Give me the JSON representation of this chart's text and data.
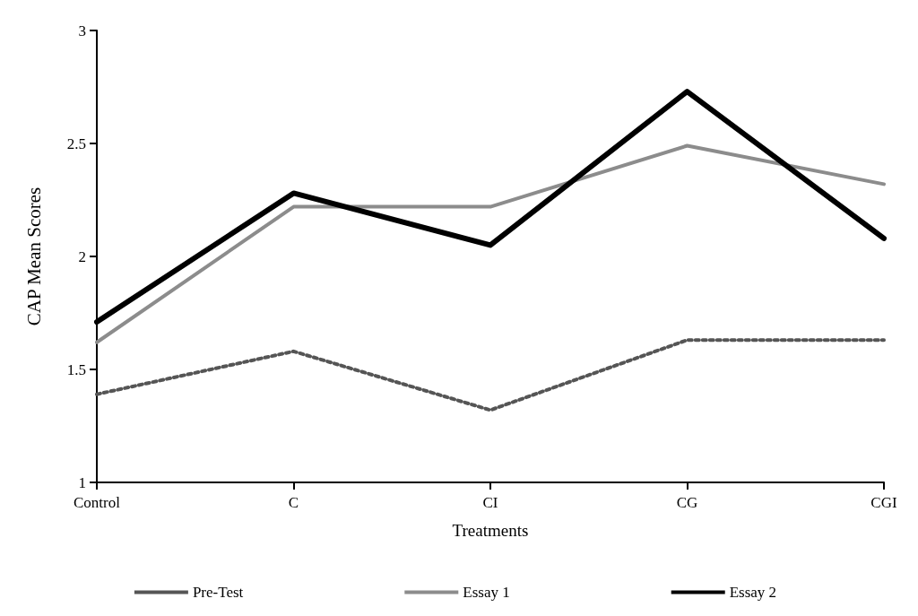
{
  "chart_data": {
    "type": "line",
    "xlabel": "Treatments",
    "ylabel": "CAP Mean Scores",
    "categories": [
      "Control",
      "C",
      "CI",
      "CG",
      "CGI"
    ],
    "series": [
      {
        "name": "Pre-Test",
        "color": "#555555",
        "line_style": "dotted",
        "values": [
          1.39,
          1.58,
          1.32,
          1.63,
          1.63
        ]
      },
      {
        "name": "Essay 1",
        "color": "#8c8c8c",
        "line_style": "solid",
        "values": [
          1.62,
          2.22,
          2.22,
          2.49,
          2.32
        ]
      },
      {
        "name": "Essay 2",
        "color": "#000000",
        "line_style": "solid",
        "values": [
          1.71,
          2.28,
          2.05,
          2.73,
          2.08
        ]
      }
    ],
    "ylim": [
      1,
      3
    ],
    "yticks": [
      1,
      1.5,
      2,
      2.5,
      3
    ],
    "grid": false,
    "legend": "bottom",
    "marker": "none"
  }
}
